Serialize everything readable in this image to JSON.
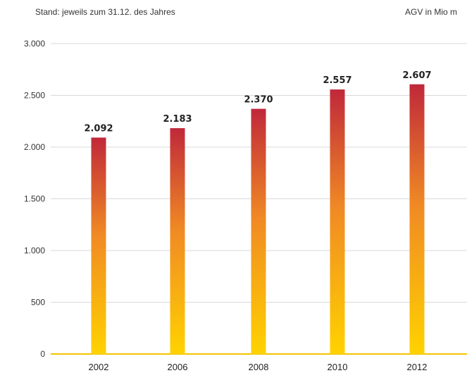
{
  "header": {
    "note": "Stand: jeweils zum 31.12. des Jahres",
    "unit": "AGV in Mio m"
  },
  "colors": {
    "bar_top": "#c0283a",
    "bar_mid": "#f08a24",
    "bar_bottom": "#ffd200",
    "grid": "#d9d9d9",
    "baseline": "#f5c400"
  },
  "chart_data": {
    "type": "bar",
    "categories": [
      "2002",
      "2006",
      "2008",
      "2010",
      "2012"
    ],
    "values": [
      2092,
      2183,
      2370,
      2557,
      2607
    ],
    "value_labels": [
      "2.092",
      "2.183",
      "2.370",
      "2.557",
      "2.607"
    ],
    "ylim": [
      0,
      3000
    ],
    "yticks": [
      0,
      500,
      1000,
      1500,
      2000,
      2500,
      3000
    ],
    "ytick_labels": [
      "0",
      "500",
      "1.000",
      "1.500",
      "2.000",
      "2.500",
      "3.000"
    ],
    "grid": true,
    "xlabel": "",
    "ylabel": ""
  }
}
